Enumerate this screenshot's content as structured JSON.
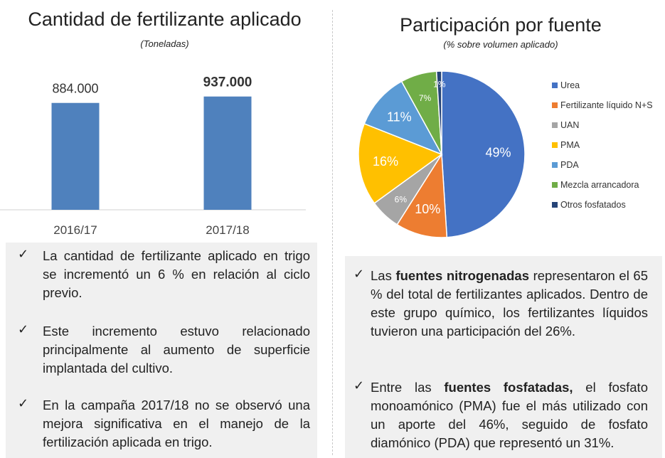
{
  "left": {
    "title": "Cantidad de fertilizante aplicado",
    "subtitle": "(Toneladas)",
    "bullets": [
      "La cantidad de fertilizante aplicado en trigo se incrementó un 6 % en relación al ciclo previo.",
      "Este incremento estuvo relacionado principalmente al aumento de superficie implantada del cultivo.",
      "En la campaña 2017/18 no se observó una mejora significativa en el manejo de la fertilización aplicada en trigo."
    ]
  },
  "right": {
    "title": "Participación por fuente",
    "subtitle": "(% sobre volumen aplicado)",
    "bullets": [
      {
        "pre": "Las ",
        "bold": "fuentes nitrogenadas",
        "post": " representaron el 65 % del total de fertilizantes aplicados. Dentro de este grupo químico, los fertilizantes líquidos tuvieron una participación del 26%."
      },
      {
        "pre": "Entre las ",
        "bold": "fuentes fosfatadas,",
        "post": " el fosfato monoamónico (PMA) fue el más utilizado con un aporte del 46%, seguido de fosfato diamónico (PDA) que representó un 31%."
      }
    ]
  },
  "check_symbol": "✓",
  "chart_data": [
    {
      "type": "bar",
      "title": "Cantidad de fertilizante aplicado",
      "subtitle": "(Toneladas)",
      "categories": [
        "2016/17",
        "2017/18"
      ],
      "values": [
        884000,
        937000
      ],
      "value_labels": [
        "884.000",
        "937.000"
      ],
      "color": "#4f81bd",
      "ylim": [
        0,
        1000000
      ],
      "grid": false
    },
    {
      "type": "pie",
      "title": "Participación por fuente",
      "subtitle": "(% sobre volumen aplicado)",
      "legend_position": "right",
      "slices": [
        {
          "label": "Urea",
          "value": 49,
          "text": "49%",
          "color": "#4472c4"
        },
        {
          "label": "Fertilizante líquido N+S",
          "value": 10,
          "text": "10%",
          "color": "#ed7d31"
        },
        {
          "label": "UAN",
          "value": 6,
          "text": "6%",
          "color": "#a5a5a5"
        },
        {
          "label": "PMA",
          "value": 16,
          "text": "16%",
          "color": "#ffc000"
        },
        {
          "label": "PDA",
          "value": 11,
          "text": "11%",
          "color": "#5b9bd5"
        },
        {
          "label": "Mezcla arrancadora",
          "value": 7,
          "text": "7%",
          "color": "#70ad47"
        },
        {
          "label": "Otros fosfatados",
          "value": 1,
          "text": "1%",
          "color": "#264478"
        }
      ]
    }
  ]
}
